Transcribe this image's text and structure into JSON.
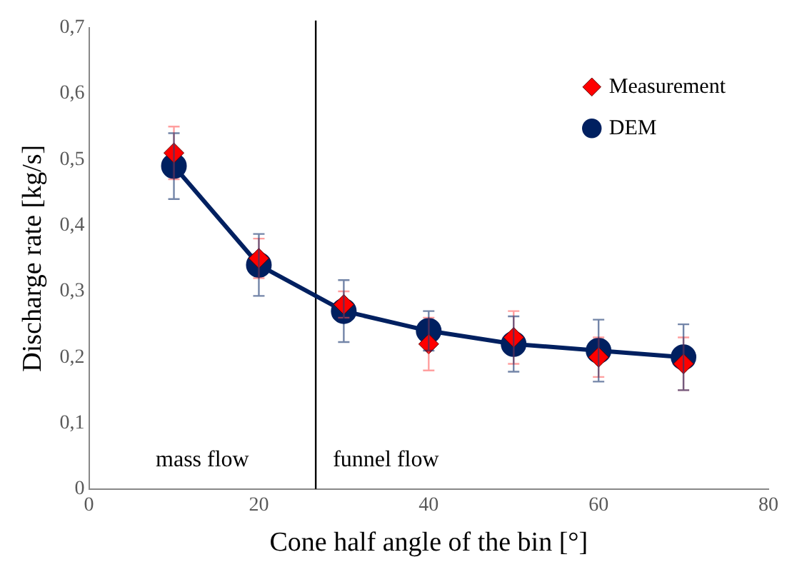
{
  "chart_data": {
    "type": "line",
    "xlabel": "Cone half angle of the bin [°]",
    "ylabel": "Discharge rate [kg/s]",
    "x": [
      10,
      20,
      30,
      40,
      50,
      60,
      70
    ],
    "series": [
      {
        "name": "Measurement",
        "type": "scatter",
        "color": "#ff0000",
        "marker": "diamond",
        "values": [
          0.51,
          0.35,
          0.28,
          0.22,
          0.23,
          0.2,
          0.19
        ],
        "errors": [
          0.04,
          0.03,
          0.02,
          0.04,
          0.04,
          0.03,
          0.04
        ]
      },
      {
        "name": "DEM",
        "type": "line",
        "color": "#002060",
        "marker": "circle",
        "values": [
          0.49,
          0.34,
          0.27,
          0.24,
          0.22,
          0.21,
          0.2
        ],
        "errors": [
          0.05,
          0.047,
          0.047,
          0.03,
          0.042,
          0.047,
          0.05
        ]
      }
    ],
    "xlim": [
      0,
      80
    ],
    "xticks": [
      0,
      20,
      40,
      60,
      80
    ],
    "ylim": [
      0,
      0.7
    ],
    "yticks": [
      {
        "value": 0,
        "label": "0"
      },
      {
        "value": 0.1,
        "label": "0,1"
      },
      {
        "value": 0.2,
        "label": "0,2"
      },
      {
        "value": 0.3,
        "label": "0,3"
      },
      {
        "value": 0.4,
        "label": "0,4"
      },
      {
        "value": 0.5,
        "label": "0,5"
      },
      {
        "value": 0.6,
        "label": "0,6"
      },
      {
        "value": 0.7,
        "label": "0,7"
      }
    ],
    "ref_lines": [
      {
        "axis": "x",
        "value": 26.7,
        "color": "#000000"
      }
    ],
    "annotations": [
      "mass flow",
      "funnel flow"
    ],
    "grid": false,
    "legend": "top right"
  }
}
